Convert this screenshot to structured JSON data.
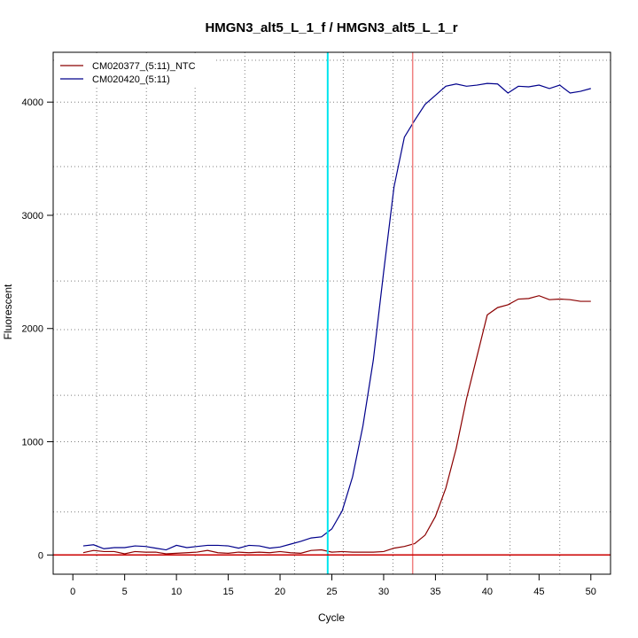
{
  "chart_data": {
    "type": "line",
    "title": "HMGN3_alt5_L_1_f / HMGN3_alt5_L_1_r",
    "xlabel": "Cycle",
    "ylabel": "Fluorescent",
    "xlim": [
      -1.9,
      51.9
    ],
    "ylim": [
      -170,
      4440
    ],
    "x_ticks": [
      0,
      5,
      10,
      15,
      20,
      25,
      30,
      35,
      40,
      45,
      50
    ],
    "y_ticks": [
      0,
      1000,
      2000,
      3000,
      4000
    ],
    "grid": true,
    "grid_x": [
      2.3,
      7.1,
      11.8,
      16.6,
      21.4,
      26.1,
      30.9,
      35.7,
      42.2,
      47.0
    ],
    "grid_y": [
      380,
      1000,
      1410,
      1990,
      2420,
      3010,
      3430,
      4000,
      4370
    ],
    "legend_position": "top-left",
    "series": [
      {
        "name": "CM020377_(5:11)_NTC",
        "color": "#8b0000",
        "x": [
          1,
          2,
          3,
          4,
          5,
          6,
          7,
          8,
          9,
          10,
          11,
          12,
          13,
          14,
          15,
          16,
          17,
          18,
          19,
          20,
          21,
          22,
          23,
          24,
          25,
          26,
          27,
          28,
          29,
          30,
          31,
          32,
          33,
          34,
          35,
          36,
          37,
          38,
          39,
          40,
          41,
          42,
          43,
          44,
          45,
          46,
          47,
          48,
          49,
          50
        ],
        "y": [
          20,
          40,
          30,
          30,
          10,
          30,
          25,
          25,
          10,
          15,
          20,
          25,
          40,
          20,
          15,
          25,
          20,
          25,
          20,
          30,
          20,
          15,
          40,
          45,
          25,
          30,
          25,
          25,
          25,
          30,
          60,
          75,
          100,
          175,
          340,
          590,
          940,
          1380,
          1750,
          2120,
          2185,
          2210,
          2260,
          2265,
          2290,
          2255,
          2260,
          2255,
          2240,
          2240
        ]
      },
      {
        "name": "CM020420_(5:11)",
        "color": "#00008b",
        "x": [
          1,
          2,
          3,
          4,
          5,
          6,
          7,
          8,
          9,
          10,
          11,
          12,
          13,
          14,
          15,
          16,
          17,
          18,
          19,
          20,
          21,
          22,
          23,
          24,
          25,
          26,
          27,
          28,
          29,
          30,
          31,
          32,
          33,
          34,
          35,
          36,
          37,
          38,
          39,
          40,
          41,
          42,
          43,
          44,
          45,
          46,
          47,
          48,
          49,
          50
        ],
        "y": [
          80,
          90,
          55,
          65,
          65,
          80,
          75,
          60,
          45,
          85,
          65,
          75,
          85,
          85,
          80,
          60,
          85,
          80,
          60,
          70,
          95,
          120,
          150,
          160,
          230,
          390,
          690,
          1140,
          1720,
          2500,
          3250,
          3690,
          3840,
          3980,
          4060,
          4140,
          4160,
          4140,
          4150,
          4165,
          4160,
          4080,
          4140,
          4135,
          4150,
          4120,
          4150,
          4080,
          4095,
          4120
        ]
      }
    ],
    "reference_lines": {
      "threshold_y": 0,
      "threshold_color": "#cc0000",
      "vline_cyan_x": 24.6,
      "vline_cyan_color": "#00e5ee",
      "vline_pink_x": 32.8,
      "vline_pink_color": "#f08080"
    }
  }
}
